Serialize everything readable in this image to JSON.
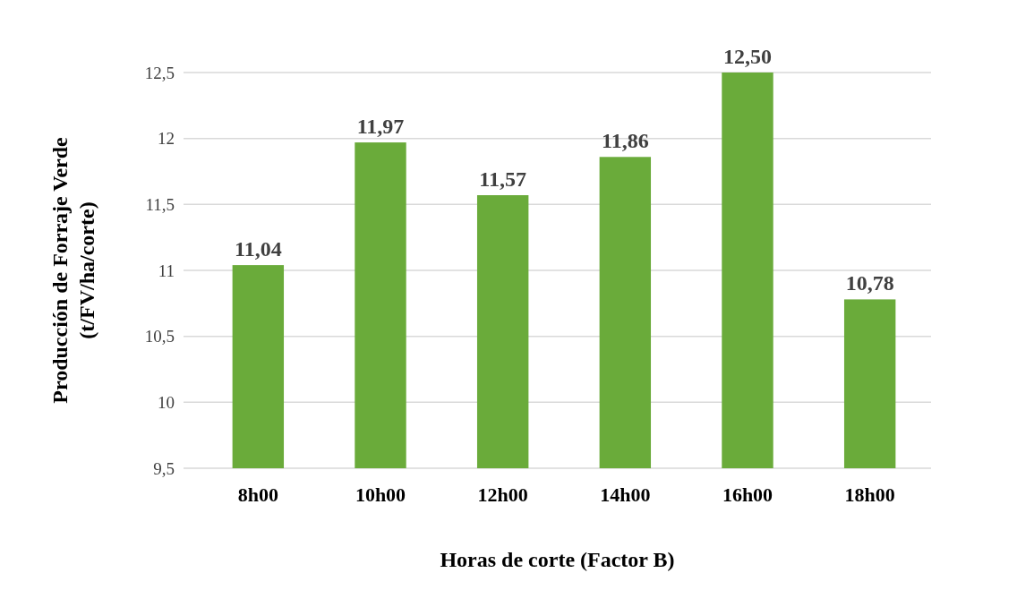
{
  "chart_data": {
    "type": "bar",
    "xlabel": "Horas de corte (Factor B)",
    "ylabel": "Producción de Forraje Verde\n(t/FV/ha/corte)",
    "categories": [
      "8h00",
      "10h00",
      "12h00",
      "14h00",
      "16h00",
      "18h00"
    ],
    "values": [
      11.04,
      11.97,
      11.57,
      11.86,
      12.5,
      10.78
    ],
    "value_labels": [
      "11,04",
      "11,97",
      "11,57",
      "11,86",
      "12,50",
      "10,78"
    ],
    "color": "#6aab3a",
    "ylim": [
      9.5,
      12.5
    ],
    "yticks": [
      {
        "value": 9.5,
        "label": "9,5"
      },
      {
        "value": 10,
        "label": "10"
      },
      {
        "value": 10.5,
        "label": "10,5"
      },
      {
        "value": 11,
        "label": "11"
      },
      {
        "value": 11.5,
        "label": "11,5"
      },
      {
        "value": 12,
        "label": "12"
      },
      {
        "value": 12.5,
        "label": "12,5"
      }
    ],
    "grid": "y"
  }
}
